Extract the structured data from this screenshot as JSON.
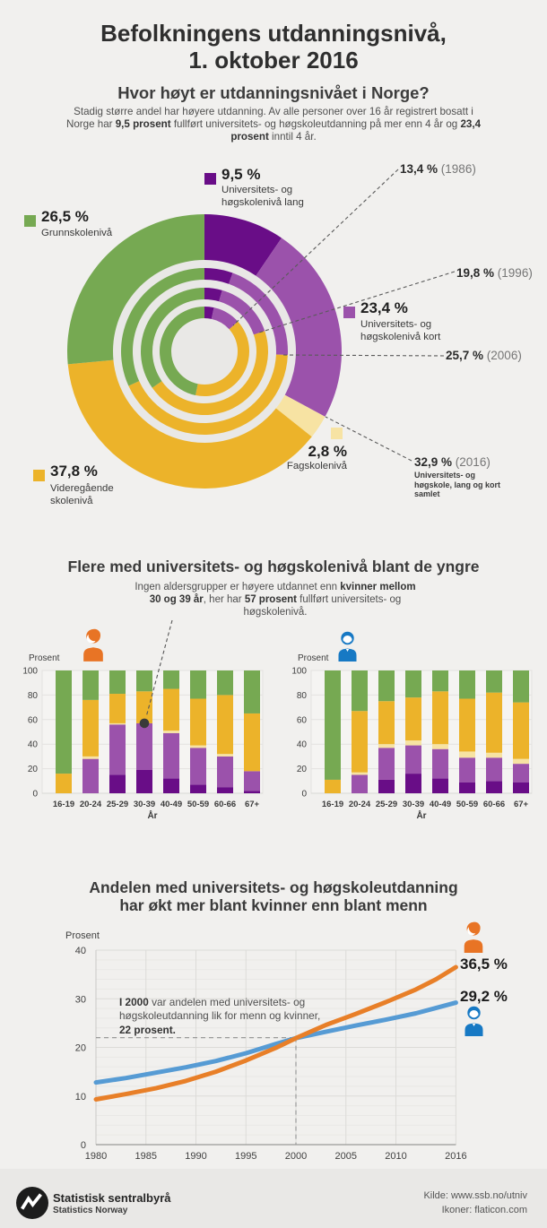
{
  "header": {
    "title_line1": "Befolkningens utdanningsnivå,",
    "title_line2": "1. oktober 2016",
    "subtitle": "Hvor høyt er utdanningsnivået i Norge?",
    "intro": [
      {
        "t": "Stadig større andel har høyere utdanning. Av alle personer over 16 år registrert bosatt i Norge har "
      },
      {
        "t": "9,5 prosent",
        "b": true
      },
      {
        "t": " fullført universitets- og høgskoleutdanning på mer enn 4 år og "
      },
      {
        "t": "23,4 prosent",
        "b": true
      },
      {
        "t": " inntil 4 år."
      }
    ]
  },
  "colors": {
    "uni_long": "#690d87",
    "uni_short": "#9b52ab",
    "fagskole": "#f7e3a3",
    "videregaende": "#ecb32a",
    "grunnskole": "#76a952",
    "women_accent": "#e87f28",
    "men_accent": "#1779c4",
    "page_bg": "#f1f0ee"
  },
  "bars_section": {
    "title": "Flere med universitets- og høgskolenivå blant de yngre",
    "annotation": [
      {
        "t": "Ingen aldersgrupper er høyere utdannet enn "
      },
      {
        "t": "kvinner mellom 30 og 39 år",
        "b": true
      },
      {
        "t": ", her har "
      },
      {
        "t": "57 prosent",
        "b": true
      },
      {
        "t": " fullført universitets- og høgskolenivå."
      }
    ]
  },
  "line_section": {
    "title_line1": "Andelen med universitets- og høgskoleutdanning",
    "title_line2": "har økt mer blant kvinner enn blant menn",
    "annotation": [
      {
        "t": "I 2000",
        "b": true
      },
      {
        "t": " var andelen med universitets- og høgskoleutdanning lik for menn og kvinner, "
      },
      {
        "t": "22 prosent.",
        "b": true
      }
    ],
    "women_end_label": "36,5 %",
    "men_end_label": "29,2 %"
  },
  "footer": {
    "org_name": "Statistisk sentralbyrå",
    "org_name_en": "Statistics Norway",
    "credit1": "Kilde: www.ssb.no/utniv",
    "credit2": "Ikoner: flaticon.com"
  },
  "chart_data": [
    {
      "id": "donut_education_2016",
      "type": "pie",
      "title": "Utdanningsnivå i befolkningen, nestede ringer 1986-2016",
      "categories": [
        "Universitets- og høgskolenivå lang",
        "Universitets- og høgskolenivå kort",
        "Fagskolenivå",
        "Videregående skolenivå",
        "Grunnskolenivå"
      ],
      "colors": [
        "#690d87",
        "#9b52ab",
        "#f7e3a3",
        "#ecb32a",
        "#76a952"
      ],
      "rings": [
        {
          "year": 1986,
          "values": [
            3.4,
            10.0,
            0,
            39.8,
            46.8
          ]
        },
        {
          "year": 1996,
          "values": [
            4.5,
            15.3,
            0,
            45.5,
            34.7
          ]
        },
        {
          "year": 2006,
          "values": [
            5.5,
            20.2,
            0,
            42.5,
            31.8
          ]
        },
        {
          "year": 2016,
          "values": [
            9.5,
            23.4,
            2.8,
            37.8,
            26.5
          ]
        }
      ],
      "legend": [
        {
          "value": "9,5 %",
          "label": "Universitets- og høgskolenivå lang"
        },
        {
          "value": "23,4 %",
          "label": "Universitets- og høgskolenivå kort"
        },
        {
          "value": "2,8 %",
          "label": "Fagskolenivå"
        },
        {
          "value": "37,8 %",
          "label": "Videregående skolenivå"
        },
        {
          "value": "26,5 %",
          "label": "Grunnskolenivå"
        }
      ],
      "history_callouts": [
        {
          "value": "13,4 %",
          "year": "(1986)"
        },
        {
          "value": "19,8 %",
          "year": "(1996)"
        },
        {
          "value": "25,7 %",
          "year": "(2006)"
        },
        {
          "value": "32,9 %",
          "year": "(2016)",
          "sub": "Universitets- og høgskole, lang og kort samlet"
        }
      ]
    },
    {
      "id": "bars_women",
      "type": "bar",
      "stacked": true,
      "group": "Kvinner",
      "categories": [
        "16-19",
        "20-24",
        "25-29",
        "30-39",
        "40-49",
        "50-59",
        "60-66",
        "67+"
      ],
      "series": [
        {
          "name": "Universitets- og høgskolenivå lang",
          "values": [
            0,
            0,
            15,
            19,
            12,
            7,
            5,
            2
          ]
        },
        {
          "name": "Universitets- og høgskolenivå kort",
          "values": [
            0,
            28,
            41,
            38,
            37,
            30,
            25,
            16
          ]
        },
        {
          "name": "Fagskolenivå",
          "values": [
            0,
            2,
            1,
            0,
            2,
            2,
            2,
            0
          ]
        },
        {
          "name": "Videregående skolenivå",
          "values": [
            16,
            46,
            24,
            26,
            34,
            38,
            48,
            47
          ]
        },
        {
          "name": "Grunnskolenivå",
          "values": [
            84,
            24,
            19,
            17,
            15,
            23,
            20,
            35
          ]
        }
      ],
      "xlabel": "År",
      "ylabel": "Prosent",
      "ylim": [
        0,
        100
      ],
      "yticks": [
        0,
        20,
        40,
        60,
        80,
        100
      ],
      "annotation_point": {
        "category": "30-39",
        "value": 57
      }
    },
    {
      "id": "bars_men",
      "type": "bar",
      "stacked": true,
      "group": "Menn",
      "categories": [
        "16-19",
        "20-24",
        "25-29",
        "30-39",
        "40-49",
        "50-59",
        "60-66",
        "67+"
      ],
      "series": [
        {
          "name": "Universitets- og høgskolenivå lang",
          "values": [
            0,
            0,
            11,
            16,
            12,
            9,
            10,
            9
          ]
        },
        {
          "name": "Universitets- og høgskolenivå kort",
          "values": [
            0,
            15,
            26,
            23,
            24,
            20,
            19,
            15
          ]
        },
        {
          "name": "Fagskolenivå",
          "values": [
            0,
            2,
            3,
            4,
            4,
            5,
            4,
            4
          ]
        },
        {
          "name": "Videregående skolenivå",
          "values": [
            11,
            50,
            35,
            35,
            43,
            43,
            49,
            46
          ]
        },
        {
          "name": "Grunnskolenivå",
          "values": [
            89,
            33,
            25,
            22,
            17,
            23,
            18,
            26
          ]
        }
      ],
      "xlabel": "År",
      "ylabel": "Prosent",
      "ylim": [
        0,
        100
      ],
      "yticks": [
        0,
        20,
        40,
        60,
        80,
        100
      ]
    },
    {
      "id": "line_uni_share_1980_2016",
      "type": "line",
      "x": [
        1980,
        1983,
        1986,
        1989,
        1992,
        1995,
        1998,
        2000,
        2003,
        2006,
        2009,
        2012,
        2014,
        2016
      ],
      "series": [
        {
          "name": "Kvinner",
          "color": "#e87f28",
          "values": [
            9.3,
            10.4,
            11.6,
            13.1,
            15.0,
            17.3,
            19.9,
            21.9,
            24.6,
            26.9,
            29.3,
            31.9,
            34.0,
            36.5
          ],
          "end_label": "36,5 %"
        },
        {
          "name": "Menn",
          "color": "#569bd4",
          "values": [
            12.8,
            13.7,
            14.8,
            15.9,
            17.2,
            18.8,
            20.7,
            21.9,
            23.2,
            24.5,
            25.7,
            27.0,
            28.1,
            29.2
          ],
          "end_label": "29,2 %"
        }
      ],
      "xticks": [
        1980,
        1985,
        1990,
        1995,
        2000,
        2005,
        2010,
        2016
      ],
      "yticks": [
        0,
        10,
        20,
        30,
        40
      ],
      "ylabel": "Prosent",
      "ylim": [
        0,
        40
      ],
      "xlim": [
        1980,
        2016
      ],
      "reference": {
        "x": 2000,
        "y": 22
      }
    }
  ]
}
